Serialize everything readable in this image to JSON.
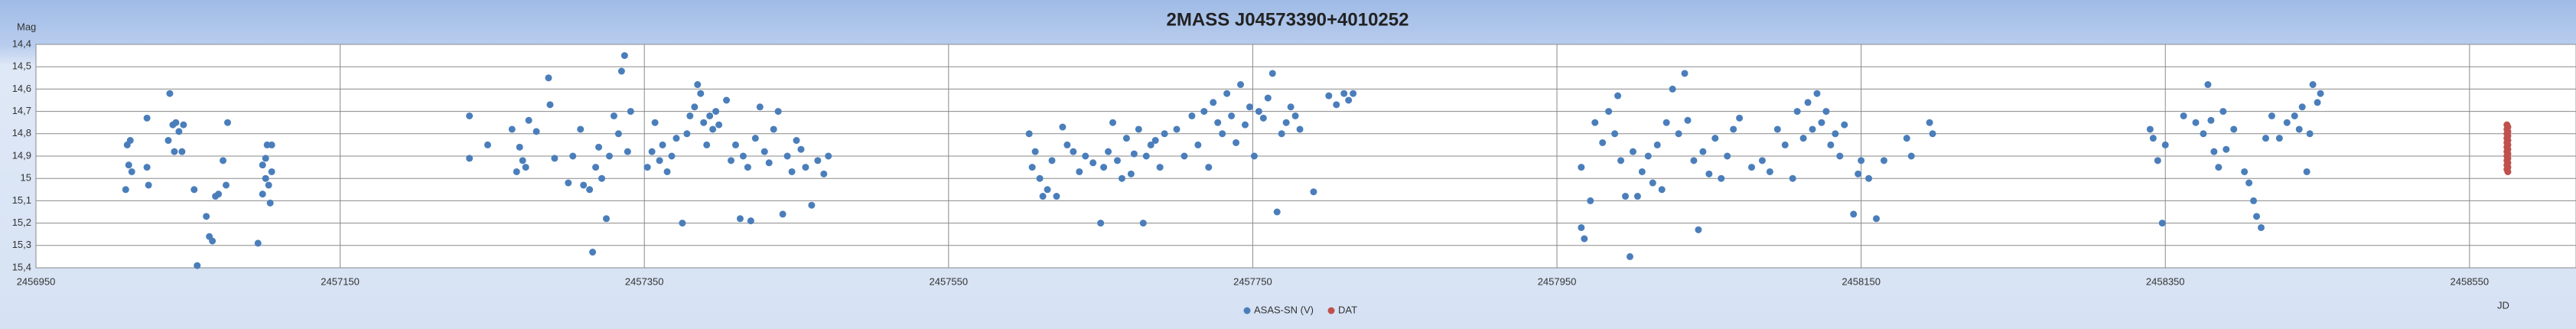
{
  "chart_data": {
    "type": "scatter",
    "title": "2MASS J04573390+4010252",
    "ylabel": "Mag",
    "xlabel": "JD",
    "xlim": [
      2456950,
      2458620
    ],
    "xticks": [
      2456950,
      2457150,
      2457350,
      2457550,
      2457750,
      2457950,
      2458150,
      2458350,
      2458550
    ],
    "ylim": [
      15.4,
      14.4
    ],
    "yticks": [
      {
        "value": 14.4,
        "label": "14,4"
      },
      {
        "value": 14.5,
        "label": "14,5"
      },
      {
        "value": 14.6,
        "label": "14,6"
      },
      {
        "value": 14.7,
        "label": "14,7"
      },
      {
        "value": 14.8,
        "label": "14,8"
      },
      {
        "value": 14.9,
        "label": "14,9"
      },
      {
        "value": 15.0,
        "label": "15"
      },
      {
        "value": 15.1,
        "label": "15,1"
      },
      {
        "value": 15.2,
        "label": "15,2"
      },
      {
        "value": 15.3,
        "label": "15,3"
      },
      {
        "value": 15.4,
        "label": "15,4"
      }
    ],
    "grid": true,
    "legend": "bottom",
    "series": [
      {
        "name": "ASAS-SN (V)",
        "color": "#4a7ebb",
        "x": [
          2457010,
          2457011,
          2457013,
          2457009,
          2457012,
          2457023,
          2457023,
          2457024,
          2457038,
          2457040,
          2457042,
          2457044,
          2457041,
          2457046,
          2457037,
          2457047,
          2457054,
          2457056,
          2457062,
          2457064,
          2457066,
          2457068,
          2457070,
          2457073,
          2457075,
          2457076,
          2457096,
          2457099,
          2457099,
          2457101,
          2457102,
          2457103,
          2457104,
          2457105,
          2457105,
          2457101,
          2457235,
          2457235,
          2457247,
          2457263,
          2457266,
          2457268,
          2457270,
          2457272,
          2457274,
          2457279,
          2457287,
          2457288,
          2457291,
          2457300,
          2457303,
          2457308,
          2457310,
          2457314,
          2457316,
          2457318,
          2457320,
          2457322,
          2457325,
          2457327,
          2457330,
          2457333,
          2457335,
          2457337,
          2457339,
          2457341,
          2457352,
          2457355,
          2457357,
          2457360,
          2457362,
          2457365,
          2457368,
          2457371,
          2457375,
          2457378,
          2457380,
          2457383,
          2457385,
          2457387,
          2457389,
          2457391,
          2457393,
          2457395,
          2457397,
          2457399,
          2457404,
          2457407,
          2457410,
          2457413,
          2457415,
          2457418,
          2457420,
          2457423,
          2457426,
          2457429,
          2457432,
          2457435,
          2457438,
          2457441,
          2457444,
          2457447,
          2457450,
          2457453,
          2457456,
          2457460,
          2457464,
          2457468,
          2457471,
          2457603,
          2457605,
          2457607,
          2457610,
          2457612,
          2457615,
          2457618,
          2457621,
          2457625,
          2457628,
          2457632,
          2457636,
          2457640,
          2457645,
          2457650,
          2457652,
          2457655,
          2457658,
          2457661,
          2457664,
          2457667,
          2457670,
          2457672,
          2457675,
          2457678,
          2457680,
          2457683,
          2457686,
          2457689,
          2457692,
          2457700,
          2457705,
          2457710,
          2457714,
          2457718,
          2457721,
          2457724,
          2457727,
          2457730,
          2457733,
          2457736,
          2457739,
          2457742,
          2457745,
          2457748,
          2457751,
          2457754,
          2457757,
          2457760,
          2457763,
          2457766,
          2457769,
          2457772,
          2457775,
          2457778,
          2457781,
          2457790,
          2457800,
          2457805,
          2457810,
          2457813,
          2457816,
          2457966,
          2457966,
          2457968,
          2457972,
          2457975,
          2457980,
          2457984,
          2457988,
          2457990,
          2457992,
          2457995,
          2457998,
          2458000,
          2458003,
          2458006,
          2458010,
          2458013,
          2458016,
          2458019,
          2458022,
          2458026,
          2458030,
          2458034,
          2458036,
          2458040,
          2458043,
          2458046,
          2458050,
          2458054,
          2458058,
          2458062,
          2458066,
          2458070,
          2458078,
          2458085,
          2458090,
          2458095,
          2458100,
          2458105,
          2458108,
          2458112,
          2458115,
          2458118,
          2458121,
          2458124,
          2458127,
          2458130,
          2458133,
          2458136,
          2458139,
          2458145,
          2458148,
          2458150,
          2458155,
          2458160,
          2458165,
          2458180,
          2458183,
          2458195,
          2458197,
          2458340,
          2458342,
          2458345,
          2458348,
          2458350,
          2458362,
          2458370,
          2458375,
          2458378,
          2458380,
          2458382,
          2458385,
          2458388,
          2458390,
          2458395,
          2458402,
          2458405,
          2458408,
          2458410,
          2458413,
          2458416,
          2458420,
          2458425,
          2458430,
          2458435,
          2458438,
          2458440,
          2458443,
          2458445,
          2458447,
          2458450,
          2458452
        ],
        "values": [
          14.85,
          14.94,
          14.97,
          15.05,
          14.83,
          14.73,
          14.95,
          15.03,
          14.62,
          14.76,
          14.75,
          14.79,
          14.88,
          14.88,
          14.83,
          14.76,
          15.05,
          15.39,
          15.17,
          15.26,
          15.28,
          15.08,
          15.07,
          14.92,
          15.03,
          14.75,
          15.29,
          15.07,
          14.94,
          15.0,
          14.85,
          15.03,
          15.11,
          14.97,
          14.85,
          14.91,
          14.72,
          14.91,
          14.85,
          14.78,
          14.97,
          14.86,
          14.92,
          14.95,
          14.74,
          14.79,
          14.55,
          14.67,
          14.91,
          15.02,
          14.9,
          14.78,
          15.03,
          15.05,
          15.33,
          14.95,
          14.86,
          15.0,
          15.18,
          14.9,
          14.72,
          14.8,
          14.52,
          14.45,
          14.88,
          14.7,
          14.95,
          14.88,
          14.75,
          14.92,
          14.85,
          14.97,
          14.9,
          14.82,
          15.2,
          14.8,
          14.72,
          14.68,
          14.58,
          14.62,
          14.75,
          14.85,
          14.72,
          14.78,
          14.7,
          14.76,
          14.65,
          14.92,
          14.85,
          15.18,
          14.9,
          14.95,
          15.19,
          14.82,
          14.68,
          14.88,
          14.93,
          14.78,
          14.7,
          15.16,
          14.9,
          14.97,
          14.83,
          14.87,
          14.95,
          15.12,
          14.92,
          14.98,
          14.9,
          14.8,
          14.95,
          14.88,
          15.0,
          15.08,
          15.05,
          14.92,
          15.08,
          14.77,
          14.85,
          14.88,
          14.97,
          14.9,
          14.93,
          15.2,
          14.95,
          14.88,
          14.75,
          14.92,
          15.0,
          14.82,
          14.98,
          14.89,
          14.78,
          15.2,
          14.9,
          14.85,
          14.83,
          14.95,
          14.8,
          14.78,
          14.9,
          14.72,
          14.85,
          14.7,
          14.95,
          14.66,
          14.75,
          14.8,
          14.62,
          14.72,
          14.84,
          14.58,
          14.76,
          14.68,
          14.9,
          14.7,
          14.73,
          14.64,
          14.53,
          15.15,
          14.8,
          14.75,
          14.68,
          14.72,
          14.78,
          15.06,
          14.63,
          14.67,
          14.62,
          14.65,
          14.62,
          14.95,
          15.22,
          15.27,
          15.1,
          14.75,
          14.84,
          14.7,
          14.8,
          14.63,
          14.92,
          15.08,
          15.35,
          14.88,
          15.08,
          14.97,
          14.9,
          15.02,
          14.85,
          15.05,
          14.75,
          14.6,
          14.8,
          14.53,
          14.74,
          14.92,
          15.23,
          14.88,
          14.98,
          14.82,
          15.0,
          14.9,
          14.78,
          14.73,
          14.95,
          14.92,
          14.97,
          14.78,
          14.85,
          15.0,
          14.7,
          14.82,
          14.66,
          14.78,
          14.62,
          14.75,
          14.7,
          14.85,
          14.8,
          14.9,
          14.76,
          15.16,
          14.98,
          14.92,
          15.0,
          15.18,
          14.92,
          14.82,
          14.9,
          14.75,
          14.8,
          14.78,
          14.82,
          14.92,
          15.2,
          14.85,
          14.72,
          14.75,
          14.8,
          14.58,
          14.74,
          14.88,
          14.95,
          14.7,
          14.87,
          14.78,
          14.97,
          15.02,
          15.1,
          15.17,
          15.22,
          14.82,
          14.72,
          14.82,
          14.75,
          14.72,
          14.78,
          14.68,
          14.97,
          14.8,
          14.58,
          14.66,
          14.62
        ]
      },
      {
        "name": "DAT",
        "color": "#c0504d",
        "x": [
          2458574.6,
          2458575.2,
          2458574.6,
          2458575.2,
          2458574.6,
          2458575.2,
          2458574.6,
          2458575.2,
          2458574.6,
          2458575.2,
          2458574.6,
          2458575.2,
          2458574.6,
          2458575.2,
          2458574.6,
          2458575.2,
          2458574.6,
          2458575.2,
          2458574.6,
          2458575.2,
          2458574.6,
          2458575.2
        ],
        "values": [
          14.76,
          14.77,
          14.78,
          14.79,
          14.8,
          14.81,
          14.82,
          14.83,
          14.84,
          14.85,
          14.86,
          14.87,
          14.88,
          14.89,
          14.9,
          14.91,
          14.92,
          14.93,
          14.94,
          14.95,
          14.96,
          14.97
        ]
      }
    ]
  }
}
